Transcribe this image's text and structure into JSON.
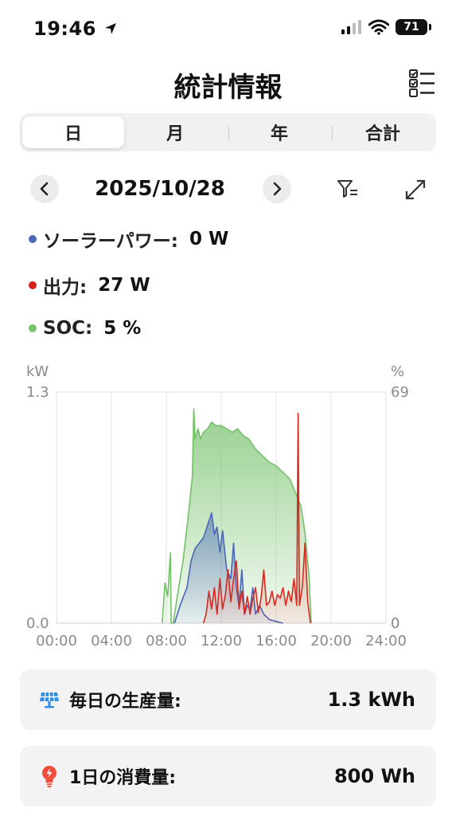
{
  "status": {
    "time": "19:46",
    "battery": "71"
  },
  "header": {
    "title": "統計情報"
  },
  "tabs": [
    {
      "label": "日",
      "active": true
    },
    {
      "label": "月",
      "active": false
    },
    {
      "label": "年",
      "active": false
    },
    {
      "label": "合計",
      "active": false
    }
  ],
  "date_nav": {
    "date": "2025/10/28"
  },
  "readings": [
    {
      "label": "ソーラーパワー:",
      "value": "0 W",
      "color": "#4a67b8"
    },
    {
      "label": "出力:",
      "value": "27 W",
      "color": "#d61f1f"
    },
    {
      "label": "SOC:",
      "value": "5 %",
      "color": "#7bc36b"
    }
  ],
  "chart_data": {
    "type": "area",
    "left_unit": "kW",
    "right_unit": "%",
    "left_ylim": [
      0,
      1.3
    ],
    "right_ylim": [
      0,
      69
    ],
    "left_ticks": [
      "1.3",
      "0.0"
    ],
    "right_ticks": [
      "69",
      "0"
    ],
    "x_ticks": [
      "00:00",
      "04:00",
      "08:00",
      "12:00",
      "16:00",
      "20:00",
      "24:00"
    ],
    "x_range_hours": [
      0,
      24
    ],
    "grid": true,
    "series": [
      {
        "key": "soc",
        "axis": "right",
        "color": "#74c069",
        "x": [
          7.7,
          7.9,
          8.1,
          8.2,
          8.3,
          8.35,
          8.5,
          8.8,
          9.2,
          9.6,
          9.9,
          10.0,
          10.1,
          10.3,
          10.5,
          10.7,
          11.0,
          11.3,
          11.6,
          12.0,
          12.4,
          12.8,
          13.2,
          13.6,
          14.0,
          14.5,
          15.0,
          15.5,
          16.0,
          16.5,
          17.0,
          17.4,
          17.8,
          18.1,
          18.4,
          18.55
        ],
        "y": [
          0,
          12,
          8,
          14,
          21,
          0,
          0,
          8,
          18,
          32,
          44,
          64,
          55,
          58,
          55,
          57,
          58,
          60,
          59,
          59,
          58,
          57,
          58,
          56,
          55,
          52,
          50,
          48,
          47,
          45,
          43,
          39,
          35,
          27,
          14,
          0
        ]
      },
      {
        "key": "solar",
        "axis": "left",
        "color": "#4a67b8",
        "x": [
          8.6,
          9.0,
          9.5,
          9.8,
          10.1,
          10.4,
          10.7,
          11.0,
          11.3,
          11.5,
          11.7,
          11.9,
          12.1,
          12.4,
          12.7,
          12.9,
          13.1,
          13.3,
          13.5,
          13.7,
          13.9,
          14.1,
          14.3,
          14.5,
          14.8,
          15.1,
          15.5,
          16.0,
          16.5
        ],
        "y": [
          0,
          0.1,
          0.2,
          0.35,
          0.42,
          0.45,
          0.48,
          0.55,
          0.62,
          0.5,
          0.54,
          0.4,
          0.52,
          0.3,
          0.25,
          0.45,
          0.2,
          0.1,
          0.3,
          0.05,
          0.1,
          0.08,
          0.2,
          0.05,
          0.1,
          0.05,
          0.02,
          0.01,
          0
        ]
      },
      {
        "key": "output",
        "axis": "left",
        "color": "#d62a20",
        "x": [
          10.7,
          10.9,
          11.1,
          11.3,
          11.5,
          11.7,
          11.9,
          12.1,
          12.3,
          12.5,
          12.7,
          12.9,
          13.1,
          13.3,
          13.5,
          13.7,
          13.9,
          14.1,
          14.3,
          14.5,
          14.7,
          14.9,
          15.1,
          15.3,
          15.5,
          15.7,
          15.9,
          16.1,
          16.3,
          16.5,
          16.7,
          16.9,
          17.1,
          17.3,
          17.5,
          17.6,
          17.7,
          17.9,
          18.1,
          18.3,
          18.5
        ],
        "y": [
          0,
          0.05,
          0.18,
          0.08,
          0.2,
          0.05,
          0.25,
          0.08,
          0.16,
          0.3,
          0.12,
          0.25,
          0.35,
          0.08,
          0.18,
          0.05,
          0.15,
          0.05,
          0.14,
          0.2,
          0.06,
          0.14,
          0.3,
          0.1,
          0.12,
          0.18,
          0.1,
          0.16,
          0.14,
          0.2,
          0.1,
          0.18,
          0.12,
          0.25,
          0.1,
          1.18,
          0.1,
          0.2,
          0.45,
          0.12,
          0
        ]
      }
    ]
  },
  "cards": [
    {
      "label": "毎日の生産量:",
      "value": "1.3 kWh",
      "icon": "solar-panel-icon",
      "icon_color": "#2f8ee6"
    },
    {
      "label": "1日の消費量:",
      "value": "800 Wh",
      "icon": "bulb-icon",
      "icon_color": "#ef4e3c"
    }
  ]
}
